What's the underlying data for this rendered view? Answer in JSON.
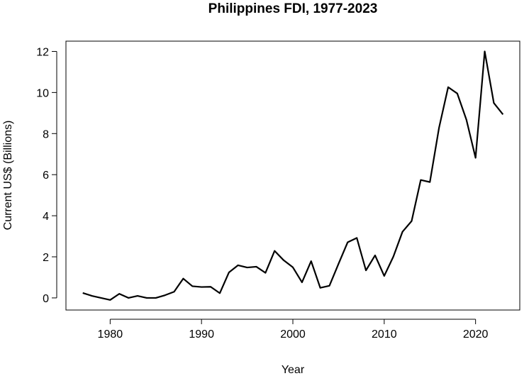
{
  "chart_data": {
    "type": "line",
    "title": "Philippines FDI, 1977-2023",
    "x_label": "Year",
    "y_label": "Current US$ (Billions)",
    "x": [
      1977,
      1978,
      1979,
      1980,
      1981,
      1982,
      1983,
      1984,
      1985,
      1986,
      1987,
      1988,
      1989,
      1990,
      1991,
      1992,
      1993,
      1994,
      1995,
      1996,
      1997,
      1998,
      1999,
      2000,
      2001,
      2002,
      2003,
      2004,
      2005,
      2006,
      2007,
      2008,
      2009,
      2010,
      2011,
      2012,
      2013,
      2014,
      2015,
      2016,
      2017,
      2018,
      2019,
      2020,
      2021,
      2022,
      2023
    ],
    "series": [
      {
        "name": "FDI",
        "color": "#000000",
        "values": [
          0.24,
          0.1,
          0.0,
          -0.1,
          0.2,
          0.0,
          0.1,
          0.0,
          0.0,
          0.13,
          0.3,
          0.94,
          0.57,
          0.53,
          0.54,
          0.23,
          1.24,
          1.59,
          1.48,
          1.52,
          1.22,
          2.29,
          1.83,
          1.49,
          0.76,
          1.79,
          0.49,
          0.59,
          1.66,
          2.71,
          2.92,
          1.34,
          2.07,
          1.07,
          2.01,
          3.22,
          3.74,
          5.74,
          5.64,
          8.28,
          10.26,
          9.95,
          8.67,
          6.82,
          12.0,
          9.49,
          8.93
        ]
      }
    ],
    "xlim": [
      1975.16,
      2024.84
    ],
    "xticks": [
      1980,
      1990,
      2000,
      2010,
      2020
    ],
    "ylim": [
      -0.59,
      12.5
    ],
    "yticks": [
      0,
      2,
      4,
      6,
      8,
      10,
      12
    ]
  }
}
